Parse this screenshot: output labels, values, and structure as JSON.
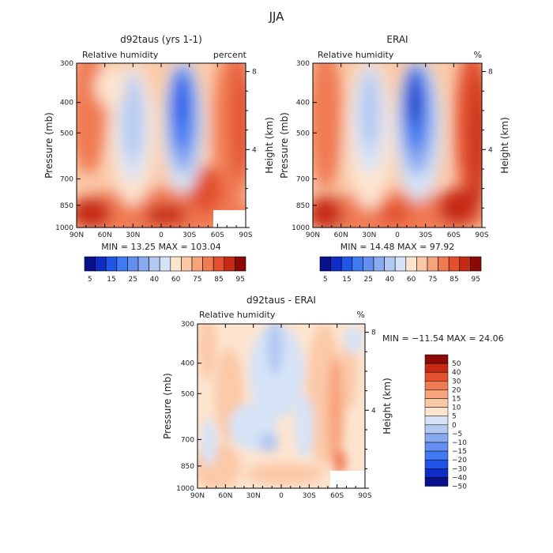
{
  "figure_title": "JJA",
  "chart_data": [
    {
      "type": "heatmap",
      "panel": "model",
      "title": "d92taus (yrs 1-1)",
      "subtitle_left": "Relative humidity",
      "subtitle_right": "percent",
      "xlabel": "",
      "ylabel": "Pressure (mb)",
      "ylabel_right": "Height (km)",
      "x_ticks": [
        "90N",
        "60N",
        "30N",
        "0",
        "30S",
        "60S",
        "90S"
      ],
      "y_ticks": [
        "300",
        "400",
        "500",
        "700",
        "850",
        "1000"
      ],
      "y_ticks_right": [
        "8",
        "4"
      ],
      "stats": "MIN =  13.25   MAX = 103.04",
      "min": 13.25,
      "max": 103.04,
      "colorbar_labels": [
        "5",
        "15",
        "25",
        "40",
        "60",
        "75",
        "85",
        "95"
      ],
      "levels": [
        5,
        10,
        15,
        20,
        25,
        30,
        40,
        50,
        60,
        70,
        75,
        80,
        85,
        90,
        95
      ]
    },
    {
      "type": "heatmap",
      "panel": "obs",
      "title": "ERAI",
      "subtitle_left": "Relative humidity",
      "subtitle_right": "%",
      "xlabel": "",
      "ylabel": "Pressure (mb)",
      "ylabel_right": "Height (km)",
      "x_ticks": [
        "90N",
        "60N",
        "30N",
        "0",
        "30S",
        "60S",
        "90S"
      ],
      "y_ticks": [
        "300",
        "400",
        "500",
        "700",
        "850",
        "1000"
      ],
      "y_ticks_right": [
        "8",
        "4"
      ],
      "stats": "MIN =  14.48   MAX =  97.92",
      "min": 14.48,
      "max": 97.92,
      "colorbar_labels": [
        "5",
        "15",
        "25",
        "40",
        "60",
        "75",
        "85",
        "95"
      ],
      "levels": [
        5,
        10,
        15,
        20,
        25,
        30,
        40,
        50,
        60,
        70,
        75,
        80,
        85,
        90,
        95
      ]
    },
    {
      "type": "heatmap",
      "panel": "difference",
      "title": "d92taus - ERAI",
      "subtitle_left": "Relative humidity",
      "subtitle_right": "%",
      "xlabel": "",
      "ylabel": "Pressure (mb)",
      "ylabel_right": "Height (km)",
      "x_ticks": [
        "90N",
        "60N",
        "30N",
        "0",
        "30S",
        "60S",
        "90S"
      ],
      "y_ticks": [
        "300",
        "400",
        "500",
        "700",
        "850",
        "1000"
      ],
      "y_ticks_right": [
        "8",
        "4"
      ],
      "stats": "MIN = −11.54   MAX =  24.06",
      "min": -11.54,
      "max": 24.06,
      "colorbar_labels": [
        "50",
        "40",
        "30",
        "20",
        "15",
        "10",
        "5",
        "0",
        "−5",
        "−10",
        "−15",
        "−20",
        "−30",
        "−40",
        "−50"
      ],
      "levels": [
        -50,
        -40,
        -30,
        -20,
        -15,
        -10,
        -5,
        0,
        5,
        10,
        15,
        20,
        30,
        40,
        50
      ]
    }
  ],
  "colors": {
    "rh_scale": [
      "#08108c",
      "#0f2dc4",
      "#1f55e8",
      "#3f7af0",
      "#6390f0",
      "#8aaaf0",
      "#b3c8f2",
      "#d6e3f7",
      "#fde4cf",
      "#fbc9a8",
      "#f7a37c",
      "#f07a52",
      "#e2502d",
      "#c62a14",
      "#8b0a05"
    ],
    "diff_scale": [
      "#08108c",
      "#0f2dc4",
      "#1f55e8",
      "#3f7af0",
      "#6390f0",
      "#8aaaf0",
      "#b3c8f2",
      "#d6e3f7",
      "#fde4cf",
      "#fbc9a8",
      "#f7a37c",
      "#f07a52",
      "#e2502d",
      "#c62a14",
      "#8b0a05"
    ]
  }
}
